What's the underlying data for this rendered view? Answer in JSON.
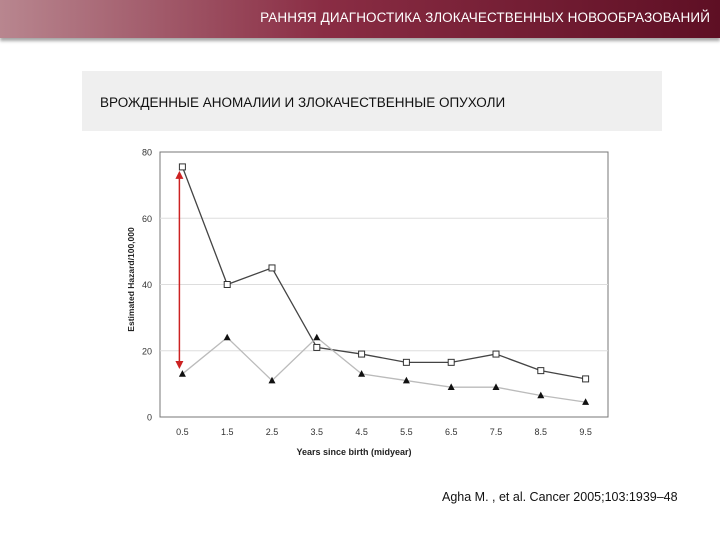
{
  "header": {
    "title": "РАННЯЯ ДИАГНОСТИКА ЗЛОКАЧЕСТВЕННЫХ НОВООБРАЗОВАНИЙ"
  },
  "subtitle": "ВРОЖДЕННЫЕ АНОМАЛИИ И ЗЛОКАЧЕСТВЕННЫЕ ОПУХОЛИ",
  "citation": "Agha M. , et al. Cancer 2005;103:1939–48",
  "chart_data": {
    "type": "line",
    "xlabel": "Years since birth (midyear)",
    "ylabel": "Estimated Hazard/100,000",
    "ylim": [
      0,
      80
    ],
    "yticks": [
      0,
      20,
      40,
      60,
      80
    ],
    "x": [
      "0.5",
      "1.5",
      "2.5",
      "3.5",
      "4.5",
      "5.5",
      "6.5",
      "7.5",
      "8.5",
      "9.5"
    ],
    "grid": true,
    "series": [
      {
        "marker": "square",
        "color": "#444444",
        "values": [
          75.5,
          40,
          45,
          21,
          19,
          16.5,
          16.5,
          19,
          14,
          11.5
        ]
      },
      {
        "marker": "triangle",
        "color": "#bbbbbb",
        "values": [
          13,
          24,
          11,
          24,
          13,
          11,
          9,
          9,
          6.5,
          4.5
        ]
      }
    ],
    "annotation": {
      "type": "double-arrow",
      "color": "#cc2222",
      "x": "0.5",
      "from": 13,
      "to": 75.5
    }
  }
}
